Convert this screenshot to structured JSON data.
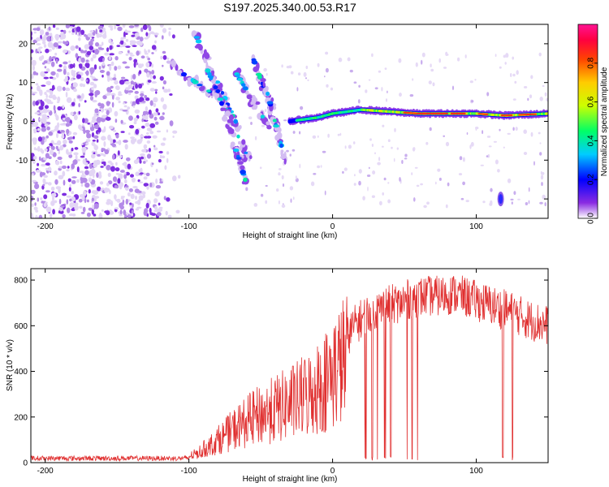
{
  "title": "S197.2025.340.00.53.R17",
  "chart_data": [
    {
      "type": "heatmap",
      "title": "S197.2025.340.00.53.R17",
      "xlabel": "Height of straight line (km)",
      "ylabel": "Frequency (Hz)",
      "xlim": [
        -210,
        150
      ],
      "ylim": [
        -25,
        25
      ],
      "x_ticks": [
        "-200",
        "-100",
        "0",
        "100"
      ],
      "x_tick_values": [
        -200,
        -100,
        0,
        100
      ],
      "y_ticks": [
        "20",
        "10",
        "0",
        "-10",
        "-20"
      ],
      "y_tick_values": [
        20,
        10,
        0,
        -10,
        -20
      ],
      "colorbar": {
        "label": "Normalized spectral amplitude",
        "range": [
          0,
          1
        ],
        "ticks": [
          "0.0",
          "0.2",
          "0.4",
          "0.6",
          "0.8"
        ],
        "tick_values": [
          0.0,
          0.2,
          0.4,
          0.6,
          0.8
        ]
      },
      "features": [
        {
          "name": "diffuse noise",
          "x_range": [
            -210,
            -110
          ],
          "y_range": [
            -25,
            25
          ],
          "level": 0.1
        },
        {
          "name": "descending tracks",
          "x": [
            -110,
            -100,
            -90,
            -80,
            -70,
            -60
          ],
          "y": [
            14,
            12,
            8,
            4,
            1,
            -1
          ],
          "level": 0.3
        },
        {
          "name": "carrier line",
          "x": [
            -30,
            -10,
            0,
            20,
            40,
            60,
            80,
            100,
            120,
            150
          ],
          "y": [
            0,
            1,
            2,
            3,
            2.5,
            2,
            2,
            2,
            1.5,
            2
          ],
          "level": 0.9
        }
      ]
    },
    {
      "type": "line",
      "xlabel": "Height of straight line (km)",
      "ylabel": "SNR (10 * v/v)",
      "xlim": [
        -210,
        150
      ],
      "ylim": [
        0,
        850
      ],
      "x_ticks": [
        "-200",
        "-100",
        "0",
        "100"
      ],
      "x_tick_values": [
        -200,
        -100,
        0,
        100
      ],
      "y_ticks": [
        "0",
        "200",
        "400",
        "600",
        "800"
      ],
      "y_tick_values": [
        0,
        200,
        400,
        600,
        800
      ],
      "color": "#e03030",
      "series": [
        {
          "name": "SNR",
          "x": [
            -210,
            -180,
            -150,
            -120,
            -105,
            -95,
            -85,
            -75,
            -65,
            -55,
            -45,
            -35,
            -25,
            -15,
            -5,
            5,
            15,
            25,
            35,
            45,
            55,
            65,
            75,
            85,
            95,
            105,
            115,
            125,
            135,
            150
          ],
          "y": [
            15,
            15,
            15,
            15,
            20,
            45,
            90,
            140,
            190,
            230,
            260,
            290,
            320,
            360,
            420,
            500,
            600,
            660,
            680,
            700,
            720,
            730,
            730,
            740,
            720,
            700,
            680,
            660,
            630,
            600
          ]
        }
      ]
    }
  ]
}
